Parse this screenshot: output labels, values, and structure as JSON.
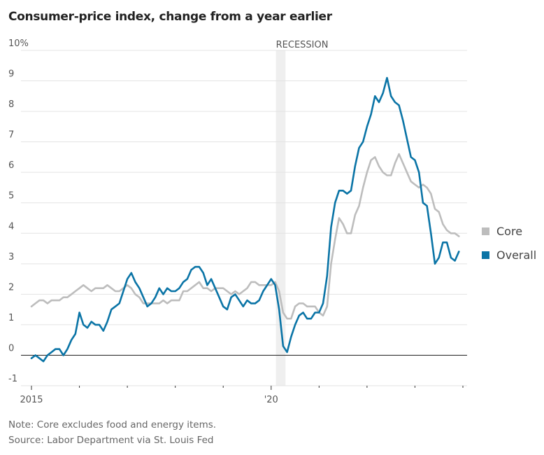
{
  "chart_data": {
    "type": "line",
    "title": "Consumer-price index, change from a year earlier",
    "xlabel": "",
    "ylabel": "",
    "y_unit_label": "10%",
    "ylim": [
      -1,
      10
    ],
    "yticks": [
      -1,
      0,
      1,
      2,
      3,
      4,
      5,
      6,
      7,
      8,
      9,
      10
    ],
    "ytick_labels": [
      "-1",
      "0",
      "1",
      "2",
      "3",
      "4",
      "5",
      "6",
      "7",
      "8",
      "9",
      "10%"
    ],
    "xlim": [
      2015.0,
      2024.0
    ],
    "xticks": [
      2015,
      2016,
      2017,
      2018,
      2019,
      2020,
      2021,
      2022,
      2023,
      2024
    ],
    "xtick_labels": [
      "2015",
      "",
      "",
      "",
      "",
      "'20",
      "",
      "",
      "",
      ""
    ],
    "grid": true,
    "legend": "right",
    "annotations": [
      {
        "type": "band",
        "label": "RECESSION",
        "x_start": 2020.1,
        "x_end": 2020.3
      }
    ],
    "x_start": "2015-01",
    "x_step": "month",
    "series": [
      {
        "name": "Core",
        "color": "#bdbdbd",
        "values": [
          1.6,
          1.7,
          1.8,
          1.8,
          1.7,
          1.8,
          1.8,
          1.8,
          1.9,
          1.9,
          2.0,
          2.1,
          2.2,
          2.3,
          2.2,
          2.1,
          2.2,
          2.2,
          2.2,
          2.3,
          2.2,
          2.1,
          2.1,
          2.2,
          2.3,
          2.2,
          2.0,
          1.9,
          1.7,
          1.7,
          1.7,
          1.7,
          1.7,
          1.8,
          1.7,
          1.8,
          1.8,
          1.8,
          2.1,
          2.1,
          2.2,
          2.3,
          2.4,
          2.2,
          2.2,
          2.1,
          2.2,
          2.2,
          2.2,
          2.1,
          2.0,
          2.1,
          2.0,
          2.1,
          2.2,
          2.4,
          2.4,
          2.3,
          2.3,
          2.3,
          2.3,
          2.4,
          2.1,
          1.4,
          1.2,
          1.2,
          1.6,
          1.7,
          1.7,
          1.6,
          1.6,
          1.6,
          1.4,
          1.3,
          1.6,
          3.0,
          3.8,
          4.5,
          4.3,
          4.0,
          4.0,
          4.6,
          4.9,
          5.5,
          6.0,
          6.4,
          6.5,
          6.2,
          6.0,
          5.9,
          5.9,
          6.3,
          6.6,
          6.3,
          6.0,
          5.7,
          5.6,
          5.5,
          5.6,
          5.5,
          5.3,
          4.8,
          4.7,
          4.3,
          4.1,
          4.0,
          4.0,
          3.9
        ]
      },
      {
        "name": "Overall",
        "color": "#0a74a6",
        "values": [
          -0.1,
          0.0,
          -0.1,
          -0.2,
          0.0,
          0.1,
          0.2,
          0.2,
          0.0,
          0.2,
          0.5,
          0.7,
          1.4,
          1.0,
          0.9,
          1.1,
          1.0,
          1.0,
          0.8,
          1.1,
          1.5,
          1.6,
          1.7,
          2.1,
          2.5,
          2.7,
          2.4,
          2.2,
          1.9,
          1.6,
          1.7,
          1.9,
          2.2,
          2.0,
          2.2,
          2.1,
          2.1,
          2.2,
          2.4,
          2.5,
          2.8,
          2.9,
          2.9,
          2.7,
          2.3,
          2.5,
          2.2,
          1.9,
          1.6,
          1.5,
          1.9,
          2.0,
          1.8,
          1.6,
          1.8,
          1.7,
          1.7,
          1.8,
          2.1,
          2.3,
          2.5,
          2.3,
          1.5,
          0.3,
          0.1,
          0.6,
          1.0,
          1.3,
          1.4,
          1.2,
          1.2,
          1.4,
          1.4,
          1.7,
          2.6,
          4.2,
          5.0,
          5.4,
          5.4,
          5.3,
          5.4,
          6.2,
          6.8,
          7.0,
          7.5,
          7.9,
          8.5,
          8.3,
          8.6,
          9.1,
          8.5,
          8.3,
          8.2,
          7.7,
          7.1,
          6.5,
          6.4,
          6.0,
          5.0,
          4.9,
          4.0,
          3.0,
          3.2,
          3.7,
          3.7,
          3.2,
          3.1,
          3.4
        ]
      }
    ]
  },
  "legend": {
    "items": [
      {
        "label": "Core",
        "color": "#bdbdbd"
      },
      {
        "label": "Overall",
        "color": "#0a74a6"
      }
    ]
  },
  "notes": {
    "note": "Note: Core excludes food and energy items.",
    "source": "Source: Labor Department via St. Louis Fed"
  }
}
